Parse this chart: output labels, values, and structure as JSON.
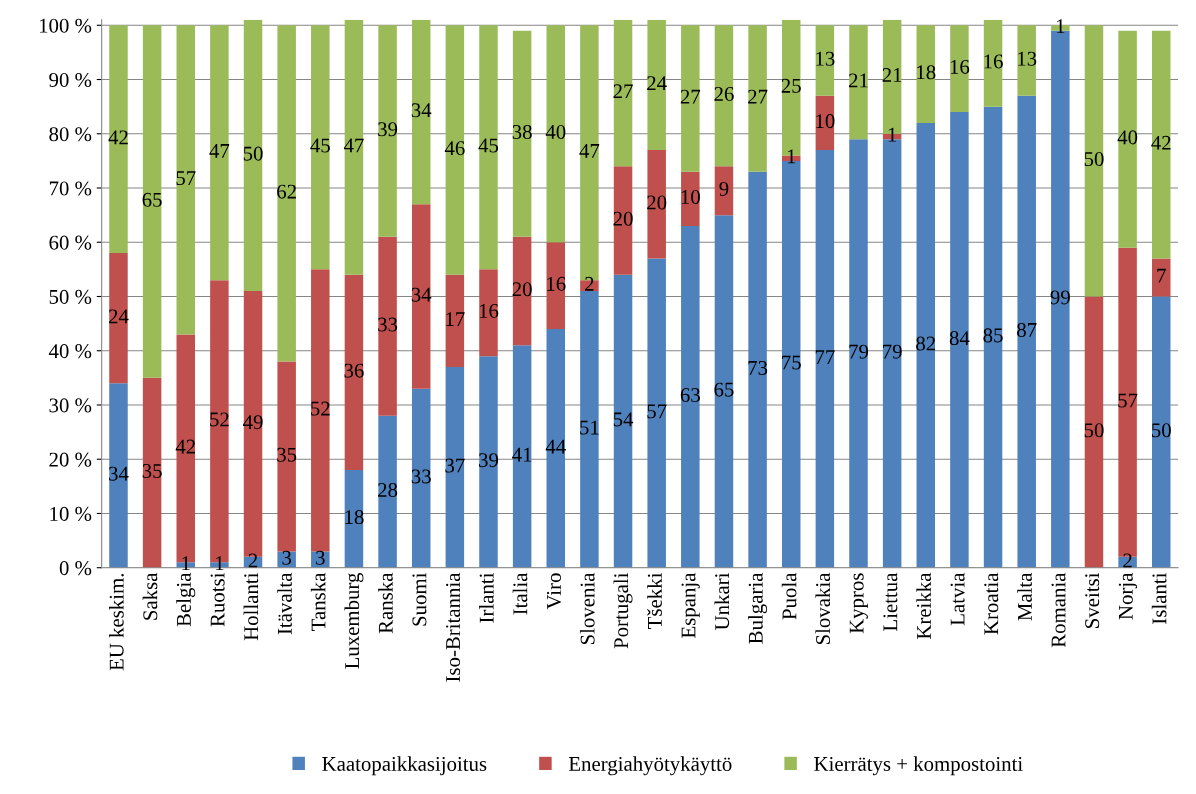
{
  "chart_data": {
    "type": "bar",
    "stacked": true,
    "categories": [
      "EU keskim.",
      "Saksa",
      "Belgia",
      "Ruotsi",
      "Hollanti",
      "Itävalta",
      "Tanska",
      "Luxemburg",
      "Ranska",
      "Suomi",
      "Iso-Britannia",
      "Irlanti",
      "Italia",
      "Viro",
      "Slovenia",
      "Portugali",
      "Tšekki",
      "Espanja",
      "Unkari",
      "Bulgaria",
      "Puola",
      "Slovakia",
      "Kypros",
      "Liettua",
      "Kreikka",
      "Latvia",
      "Kroatia",
      "Malta",
      "Romania",
      "Sveitsi",
      "Norja",
      "Islanti"
    ],
    "series": [
      {
        "name": "Kaatopaikkasijoitus",
        "color": "#4f81bd",
        "values": [
          34,
          0,
          1,
          1,
          2,
          3,
          3,
          18,
          28,
          33,
          37,
          39,
          41,
          44,
          51,
          54,
          57,
          63,
          65,
          73,
          75,
          77,
          79,
          79,
          82,
          84,
          85,
          87,
          99,
          0,
          2,
          50
        ],
        "value_labels": [
          "34",
          null,
          "1",
          "1",
          "2",
          "3",
          "3",
          "18",
          "28",
          "33",
          "37",
          "39",
          "41",
          "44",
          "51",
          "54",
          "57",
          "63",
          "65",
          "73",
          "75",
          "77",
          "79",
          "79",
          "82",
          "84",
          "85",
          "87",
          "99",
          null,
          "2",
          "50"
        ]
      },
      {
        "name": "Energiahyötykäyttö",
        "color": "#c0504d",
        "values": [
          24,
          35,
          42,
          52,
          49,
          35,
          52,
          36,
          33,
          34,
          17,
          16,
          20,
          16,
          2,
          20,
          20,
          10,
          9,
          0,
          1,
          10,
          0,
          1,
          0,
          0,
          0,
          0,
          0,
          50,
          57,
          7
        ],
        "value_labels": [
          "24",
          "35",
          "42",
          "52",
          "49",
          "35",
          "52",
          "36",
          "33",
          "34",
          "17",
          "16",
          "20",
          "16",
          "2",
          "20",
          "20",
          "10",
          "9",
          null,
          "1",
          "10",
          null,
          "1",
          null,
          null,
          null,
          null,
          null,
          "50",
          "57",
          "7"
        ]
      },
      {
        "name": "Kierrätys + kompostointi",
        "color": "#9bbb59",
        "values": [
          42,
          65,
          57,
          47,
          50,
          62,
          45,
          47,
          39,
          34,
          46,
          45,
          38,
          40,
          47,
          27,
          24,
          27,
          26,
          27,
          25,
          13,
          21,
          21,
          18,
          16,
          16,
          13,
          1,
          50,
          40,
          42
        ],
        "value_labels": [
          "42",
          "65",
          "57",
          "47",
          "50",
          "62",
          "45",
          "47",
          "39",
          "34",
          "46",
          "45",
          "38",
          "40",
          "47",
          "27",
          "24",
          "27",
          "26",
          "27",
          "25",
          "13",
          "21",
          "21",
          "18",
          "16",
          "16",
          "13",
          "1",
          "50",
          "40",
          "42"
        ]
      }
    ],
    "ylim": [
      0,
      101
    ],
    "yticks": [
      {
        "value": 0,
        "label": "0 %"
      },
      {
        "value": 10,
        "label": "10 %"
      },
      {
        "value": 20,
        "label": "20 %"
      },
      {
        "value": 30,
        "label": "30 %"
      },
      {
        "value": 40,
        "label": "40 %"
      },
      {
        "value": 50,
        "label": "50 %"
      },
      {
        "value": 60,
        "label": "60 %"
      },
      {
        "value": 70,
        "label": "70 %"
      },
      {
        "value": 80,
        "label": "80 %"
      },
      {
        "value": 90,
        "label": "90 %"
      },
      {
        "value": 100,
        "label": "100 %"
      }
    ],
    "grid": "y",
    "legend": "bottom"
  }
}
